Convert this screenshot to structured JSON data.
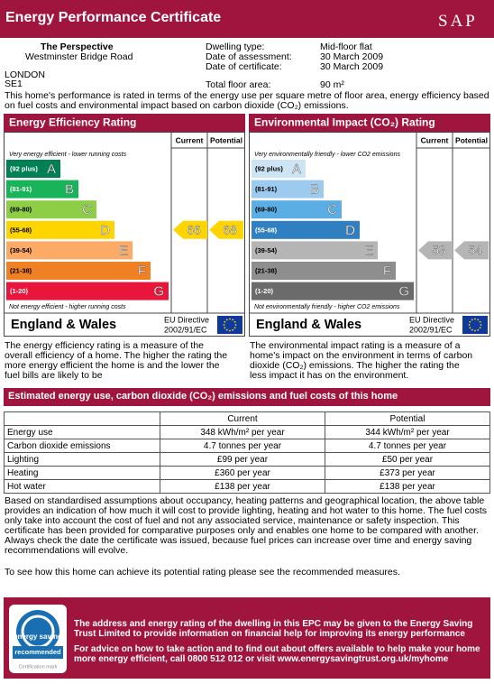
{
  "header": {
    "title": "Energy Performance Certificate",
    "logo": "SAP"
  },
  "address": [
    "The Perspective",
    "Westminster Bridge Road",
    "LONDON",
    "SE1"
  ],
  "details": [
    [
      "Dwelling type:",
      "Mid-floor flat"
    ],
    [
      "Date of assessment:",
      "30 March 2009"
    ],
    [
      "Date of certificate:",
      "30 March 2009"
    ],
    [
      "Total floor area:",
      "90 m²"
    ]
  ],
  "intro": "This home's performance is rated in terms of the energy use per square metre of floor area, energy efficiency based on fuel costs and environmental impact based on carbon dioxide (CO₂) emissions.",
  "panels": [
    {
      "title": "Energy Efficiency Rating",
      "current_header": "Current",
      "potential_header": "Potential",
      "top_note": "Very energy efficient - lower running costs",
      "bottom_note": "Not energy efficient - higher running costs",
      "bands": [
        {
          "range": "(92 plus)",
          "letter": "A",
          "color": "#008054"
        },
        {
          "range": "(81-91)",
          "letter": "B",
          "color": "#19b459"
        },
        {
          "range": "(69-80)",
          "letter": "C",
          "color": "#8dce46"
        },
        {
          "range": "(55-68)",
          "letter": "D",
          "color": "#ffd500"
        },
        {
          "range": "(39-54)",
          "letter": "E",
          "color": "#fcaa65"
        },
        {
          "range": "(21-38)",
          "letter": "F",
          "color": "#ef8023"
        },
        {
          "range": "(1-20)",
          "letter": "G",
          "color": "#e9153b"
        }
      ],
      "current": 66,
      "potential": 68,
      "region": "England & Wales",
      "directive": [
        "EU Directive",
        "2002/91/EC"
      ],
      "description": "The energy efficiency rating is a measure of the overall efficiency of a home. The higher the rating the more energy efficient the home is and the lower the fuel bills are likely to be"
    },
    {
      "title": "Environmental Impact (CO₂) Rating",
      "current_header": "Current",
      "potential_header": "Potential",
      "top_note": "Very environmentally friendly - lower CO2 emissions",
      "bottom_note": "Not environmentally friendly - higher CO2 emissions",
      "bands": [
        {
          "range": "(92 plus)",
          "letter": "A",
          "color": "#cde4f5"
        },
        {
          "range": "(81-91)",
          "letter": "B",
          "color": "#9ccbef"
        },
        {
          "range": "(69-80)",
          "letter": "C",
          "color": "#5aaee3"
        },
        {
          "range": "(55-68)",
          "letter": "D",
          "color": "#2f7fc1"
        },
        {
          "range": "(39-54)",
          "letter": "E",
          "color": "#b5b5b5"
        },
        {
          "range": "(21-38)",
          "letter": "F",
          "color": "#8e8e8e"
        },
        {
          "range": "(1-20)",
          "letter": "G",
          "color": "#6b6b6b"
        }
      ],
      "current": 53,
      "potential": 54,
      "region": "England & Wales",
      "directive": [
        "EU Directive",
        "2002/91/EC"
      ],
      "description": "The environmental impact rating is a measure of a home's impact on the environment in terms of carbon dioxide (CO₂) emissions. The higher the rating the less impact it has on the environment."
    }
  ],
  "estimates": {
    "title": "Estimated energy use, carbon dioxide (CO₂) emissions and fuel costs of this home",
    "headers": [
      "Current",
      "Potential"
    ],
    "rows": [
      [
        "Energy use",
        "348 kWh/m² per year",
        "344 kWh/m² per year"
      ],
      [
        "Carbon dioxide emissions",
        "4.7 tonnes per year",
        "4.7 tonnes per year"
      ],
      [
        "Lighting",
        "£99 per year",
        "£50 per year"
      ],
      [
        "Heating",
        "£360 per year",
        "£373 per year"
      ],
      [
        "Hot water",
        "£138 per year",
        "£138 per year"
      ]
    ]
  },
  "notes": [
    "Based on standardised assumptions about occupancy, heating patterns and geographical location, the above table provides an indication of how much it will cost to provide lighting, heating and hot water to this home. The fuel costs only take into account the cost of fuel and not any associated service, maintenance or safety inspection. This certificate has been provided for comparative purposes only and enables one home to be compared with another. Always check the date the certificate was issued, because fuel prices can increase over time and energy saving recommendations will evolve.",
    "To see how this home can achieve its potential rating please see the recommended measures."
  ],
  "footer": {
    "logo_top": "energy saving",
    "logo_bottom": "recommended",
    "logo_caption": "Certification mark",
    "text": [
      "The address and energy rating of the dwelling in this EPC may be given to the Energy Saving Trust Limited to provide information on financial help for improving its energy performance",
      "For advice on how to take action and to find out about offers available to help make your home more energy efficient, call 0800 512 012 or visit www.energysavingtrust.org.uk/myhome"
    ]
  }
}
